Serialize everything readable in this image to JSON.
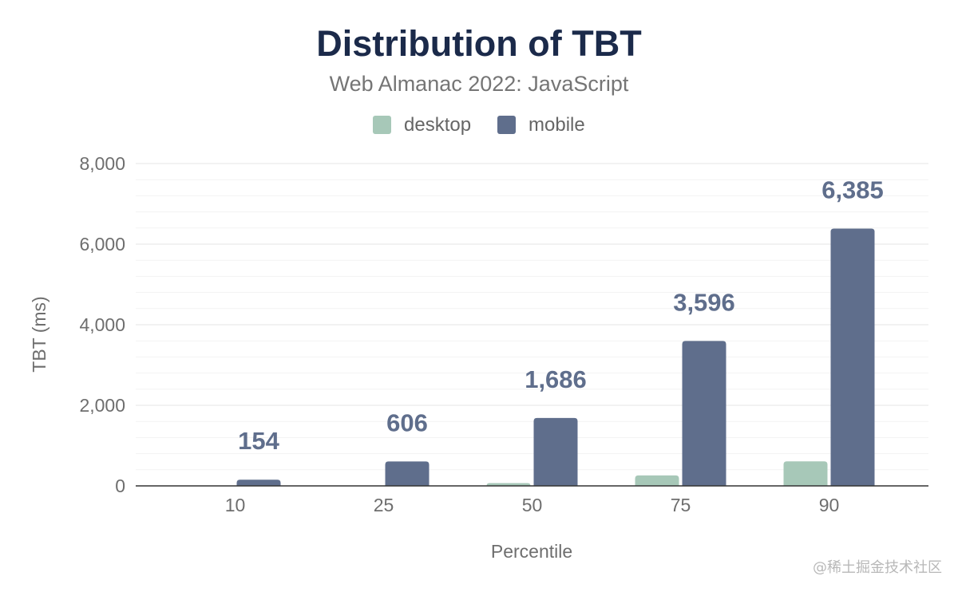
{
  "chart_data": {
    "type": "bar",
    "title": "Distribution of TBT",
    "subtitle": "Web Almanac 2022: JavaScript",
    "categories": [
      "10",
      "25",
      "50",
      "75",
      "90"
    ],
    "series": [
      {
        "name": "desktop",
        "color": "#a7c8b8",
        "values": [
          0,
          0,
          70,
          260,
          610
        ]
      },
      {
        "name": "mobile",
        "color": "#5f6e8c",
        "values": [
          154,
          606,
          1686,
          3596,
          6385
        ],
        "labels": [
          "154",
          "606",
          "1,686",
          "3,596",
          "6,385"
        ]
      }
    ],
    "xlabel": "Percentile",
    "ylabel": "TBT (ms)",
    "ylim": [
      0,
      8000
    ],
    "y_ticks": [
      0,
      2000,
      4000,
      6000,
      8000
    ],
    "y_tick_labels": [
      "0",
      "2,000",
      "4,000",
      "6,000",
      "8,000"
    ],
    "y_minor_tick_interval": 400,
    "grid": true,
    "legend_position": "top"
  },
  "watermark": "@稀土掘金技术社区"
}
